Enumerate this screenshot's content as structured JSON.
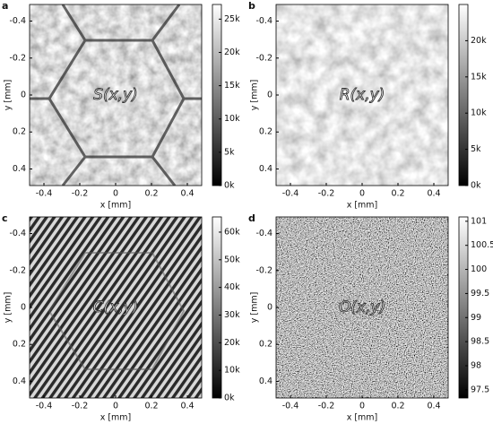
{
  "chart_data": [
    {
      "type": "image",
      "panel": "a",
      "annotation": "S(x,y)",
      "xlabel": "x [mm]",
      "ylabel": "y [mm]",
      "xlim": [
        -0.48,
        0.48
      ],
      "ylim": [
        0.49,
        -0.49
      ],
      "xticks": [
        -0.4,
        -0.2,
        0,
        0.2,
        0.4
      ],
      "yticks": [
        -0.4,
        -0.2,
        0,
        0.2,
        0.4
      ],
      "colorbar": {
        "lim": [
          0,
          27200
        ],
        "ticks": [
          {
            "value": 0,
            "label": "0k"
          },
          {
            "value": 5000,
            "label": "5k"
          },
          {
            "value": 10000,
            "label": "10k"
          },
          {
            "value": 15000,
            "label": "15k"
          },
          {
            "value": 20000,
            "label": "20k"
          },
          {
            "value": 25000,
            "label": "25k"
          }
        ]
      }
    },
    {
      "type": "image",
      "panel": "b",
      "annotation": "R(x,y)",
      "xlabel": "x [mm]",
      "ylabel": "y [mm]",
      "xlim": [
        -0.48,
        0.48
      ],
      "ylim": [
        0.49,
        -0.49
      ],
      "xticks": [
        -0.4,
        -0.2,
        0,
        0.2,
        0.4
      ],
      "yticks": [
        -0.4,
        -0.2,
        0,
        0.2,
        0.4
      ],
      "colorbar": {
        "lim": [
          0,
          25000
        ],
        "ticks": [
          {
            "value": 0,
            "label": "0k"
          },
          {
            "value": 5000,
            "label": "5k"
          },
          {
            "value": 10000,
            "label": "10k"
          },
          {
            "value": 15000,
            "label": "15k"
          },
          {
            "value": 20000,
            "label": "20k"
          }
        ]
      }
    },
    {
      "type": "image",
      "panel": "c",
      "annotation": "C(x,y)",
      "xlabel": "x [mm]",
      "ylabel": "y [mm]",
      "xlim": [
        -0.48,
        0.48
      ],
      "ylim": [
        0.49,
        -0.49
      ],
      "xticks": [
        -0.4,
        -0.2,
        0,
        0.2,
        0.4
      ],
      "yticks": [
        -0.4,
        -0.2,
        0,
        0.2,
        0.4
      ],
      "colorbar": {
        "lim": [
          0,
          65500
        ],
        "ticks": [
          {
            "value": 0,
            "label": "0k"
          },
          {
            "value": 10000,
            "label": "10k"
          },
          {
            "value": 20000,
            "label": "20k"
          },
          {
            "value": 30000,
            "label": "30k"
          },
          {
            "value": 40000,
            "label": "40k"
          },
          {
            "value": 50000,
            "label": "50k"
          },
          {
            "value": 60000,
            "label": "60k"
          }
        ]
      }
    },
    {
      "type": "image",
      "panel": "d",
      "annotation": "O(x,y)",
      "xlabel": "x [mm]",
      "ylabel": "y [mm]",
      "xlim": [
        -0.48,
        0.48
      ],
      "ylim": [
        0.49,
        -0.49
      ],
      "xticks": [
        -0.4,
        -0.2,
        0,
        0.2,
        0.4
      ],
      "yticks": [
        -0.4,
        -0.2,
        0,
        0.2,
        0.4
      ],
      "colorbar": {
        "lim": [
          97.33,
          101.09
        ],
        "ticks": [
          97.5,
          98,
          98.5,
          99,
          99.5,
          100,
          100.5,
          101
        ]
      }
    }
  ]
}
